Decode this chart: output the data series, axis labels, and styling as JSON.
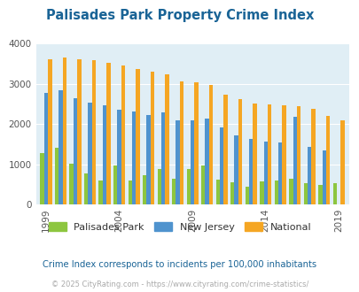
{
  "title": "Palisades Park Property Crime Index",
  "title_color": "#1a6496",
  "years": [
    1999,
    2000,
    2001,
    2002,
    2003,
    2004,
    2005,
    2006,
    2007,
    2008,
    2009,
    2010,
    2011,
    2012,
    2013,
    2014,
    2015,
    2016,
    2017,
    2018,
    2019,
    2020
  ],
  "palisades_park": [
    1280,
    1400,
    1020,
    780,
    600,
    970,
    600,
    730,
    880,
    640,
    890,
    980,
    610,
    550,
    430,
    570,
    600,
    640,
    530,
    490,
    520,
    0
  ],
  "new_jersey": [
    2780,
    2840,
    2640,
    2540,
    2460,
    2350,
    2320,
    2220,
    2300,
    2090,
    2090,
    2140,
    1910,
    1720,
    1620,
    1560,
    1550,
    2180,
    1430,
    1350,
    0,
    0
  ],
  "national": [
    3620,
    3660,
    3620,
    3590,
    3520,
    3450,
    3370,
    3300,
    3250,
    3060,
    3050,
    2970,
    2730,
    2620,
    2510,
    2500,
    2470,
    2450,
    2380,
    2200,
    2100,
    0
  ],
  "palisades_park_color": "#8dc63f",
  "new_jersey_color": "#4f93ce",
  "national_color": "#f5a623",
  "bg_color": "#e0eef5",
  "ylim": [
    0,
    4000
  ],
  "yticks": [
    0,
    1000,
    2000,
    3000,
    4000
  ],
  "xlabel_ticks": [
    1999,
    2004,
    2009,
    2014,
    2019
  ],
  "footnote": "Crime Index corresponds to incidents per 100,000 inhabitants",
  "footnote2": "© 2025 CityRating.com - https://www.cityrating.com/crime-statistics/",
  "footnote_color": "#1a6496",
  "footnote2_color": "#aaaaaa",
  "legend_labels": [
    "Palisades Park",
    "New Jersey",
    "National"
  ],
  "bar_width": 0.27
}
